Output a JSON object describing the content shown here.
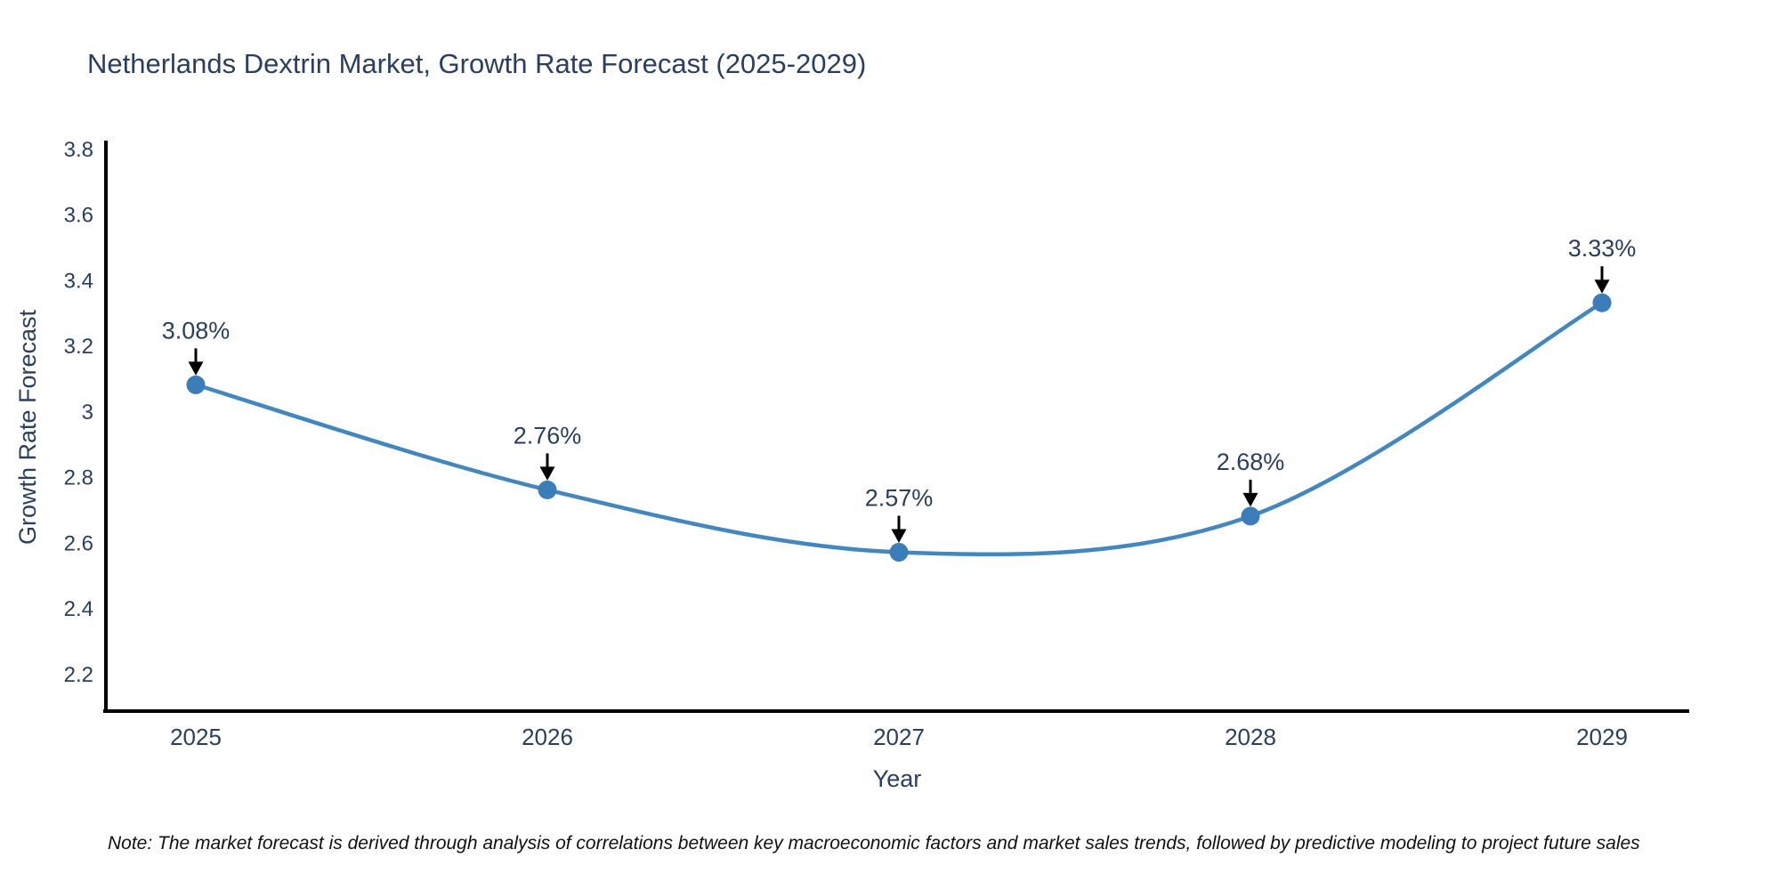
{
  "title": "Netherlands Dextrin Market, Growth Rate Forecast (2025-2029)",
  "note": "Note: The market forecast is derived through analysis of correlations between key macroeconomic factors and market sales trends, followed by predictive modeling to project future sales",
  "chart_data": {
    "type": "line",
    "title": "Netherlands Dextrin Market, Growth Rate Forecast (2025-2029)",
    "xlabel": "Year",
    "ylabel": "Growth Rate Forecast",
    "categories": [
      "2025",
      "2026",
      "2027",
      "2028",
      "2029"
    ],
    "series": [
      {
        "name": "Growth Rate Forecast",
        "values": [
          3.08,
          2.76,
          2.57,
          2.68,
          3.33
        ]
      }
    ],
    "point_labels": [
      "3.08%",
      "2.76%",
      "2.57%",
      "2.68%",
      "3.33%"
    ],
    "yticks": {
      "values": [
        2.2,
        2.4,
        2.6,
        2.8,
        3.0,
        3.2,
        3.4,
        3.6,
        3.8
      ],
      "labels": [
        "2.2",
        "2.4",
        "2.6",
        "2.8",
        "3",
        "3.2",
        "3.4",
        "3.6",
        "3.8"
      ]
    },
    "ylim": [
      2.086,
      3.824
    ],
    "line_shape": "spline",
    "grid": false,
    "legend": "none",
    "annotations_have_arrows": true,
    "colors": {
      "line": "#4287bd",
      "marker": "#3b7db8",
      "axis": "#000000",
      "text": "#2a3f5f",
      "arrow": "#000000",
      "note_text": "#111111",
      "background": "#ffffff"
    }
  }
}
